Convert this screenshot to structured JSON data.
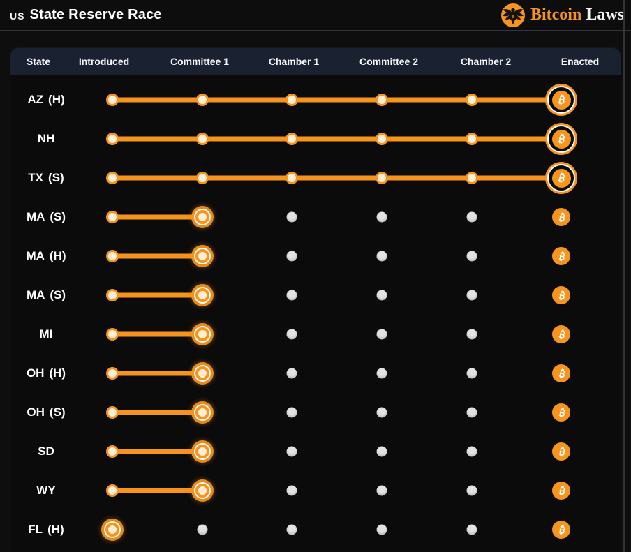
{
  "header": {
    "flag_label": "US",
    "title": "State Reserve Race",
    "brand": {
      "word1": "Bitcoin",
      "word2": "Laws",
      "icon": "eagle-seal-icon"
    }
  },
  "tracker": {
    "columns": [
      "State",
      "Introduced",
      "Committee 1",
      "Chamber 1",
      "Committee 2",
      "Chamber 2",
      "Enacted"
    ],
    "stages": [
      "introduced",
      "committee-1",
      "chamber-1",
      "committee-2",
      "chamber-2",
      "enacted"
    ],
    "rows": [
      {
        "state": "AZ",
        "chamber": "(H)",
        "progress": "enacted",
        "progress_index": 6
      },
      {
        "state": "NH",
        "chamber": "",
        "progress": "enacted",
        "progress_index": 6
      },
      {
        "state": "TX",
        "chamber": "(S)",
        "progress": "enacted",
        "progress_index": 6
      },
      {
        "state": "MA",
        "chamber": "(S)",
        "progress": "committee-1",
        "progress_index": 2
      },
      {
        "state": "MA",
        "chamber": "(H)",
        "progress": "committee-1",
        "progress_index": 2
      },
      {
        "state": "MA",
        "chamber": "(S)",
        "progress": "committee-1",
        "progress_index": 2
      },
      {
        "state": "MI",
        "chamber": "",
        "progress": "committee-1",
        "progress_index": 2
      },
      {
        "state": "OH",
        "chamber": "(H)",
        "progress": "committee-1",
        "progress_index": 2
      },
      {
        "state": "OH",
        "chamber": "(S)",
        "progress": "committee-1",
        "progress_index": 2
      },
      {
        "state": "SD",
        "chamber": "",
        "progress": "committee-1",
        "progress_index": 2
      },
      {
        "state": "WY",
        "chamber": "",
        "progress": "committee-1",
        "progress_index": 2
      },
      {
        "state": "FL",
        "chamber": "(H)",
        "progress": "introduced",
        "progress_index": 1
      }
    ]
  },
  "colors": {
    "accent_orange": "#f7941d",
    "dot_completed_fill": "#fdeed5",
    "dot_inactive": "#e3e3e4",
    "table_header_bg": "#1a2130",
    "page_bg": "#0e0e0f",
    "bitcoin_symbol_color": "#ffffff"
  }
}
